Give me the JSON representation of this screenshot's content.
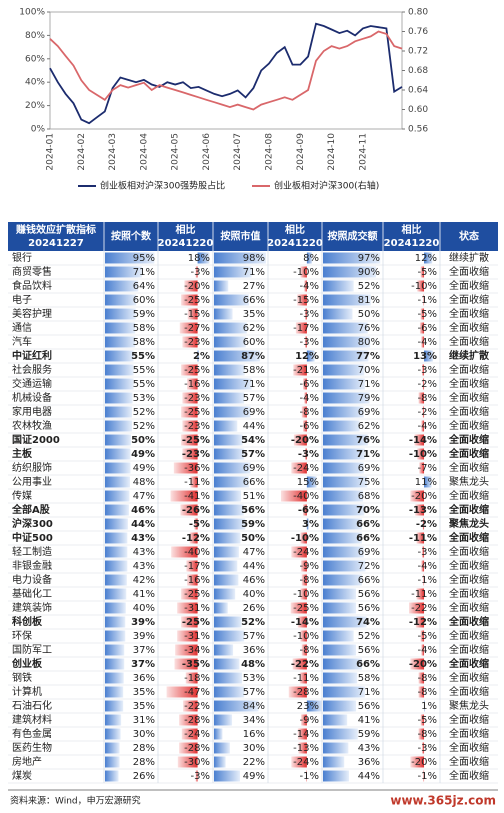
{
  "chart_data": {
    "type": "line",
    "x": [
      "2024-01",
      null,
      null,
      null,
      "2024-02",
      null,
      null,
      null,
      "2024-03",
      null,
      null,
      null,
      "2024-04",
      null,
      null,
      null,
      "2024-05",
      null,
      null,
      null,
      "2024-06",
      null,
      null,
      null,
      "2024-07",
      null,
      null,
      null,
      "2024-08",
      null,
      null,
      null,
      "2024-09",
      null,
      null,
      null,
      "2024-10",
      null,
      null,
      null,
      "2024-11",
      null,
      null,
      null,
      null,
      null
    ],
    "series": [
      {
        "name": "创业板相对沪深300强势股占比",
        "color": "#1c2c6e",
        "values": [
          52,
          40,
          30,
          22,
          8,
          5,
          10,
          15,
          35,
          44,
          42,
          40,
          42,
          38,
          36,
          40,
          38,
          40,
          35,
          36,
          33,
          30,
          28,
          30,
          33,
          27,
          35,
          50,
          56,
          65,
          70,
          55,
          55,
          62,
          90,
          88,
          85,
          82,
          84,
          80,
          86,
          88,
          87,
          86,
          32,
          36
        ]
      },
      {
        "name": "创业板相对沪深300(右轴)",
        "color": "#d9676a",
        "axis": "y2",
        "values": [
          0.745,
          0.73,
          0.71,
          0.69,
          0.66,
          0.64,
          0.63,
          0.62,
          0.64,
          0.65,
          0.645,
          0.65,
          0.655,
          0.64,
          0.65,
          0.645,
          0.64,
          0.635,
          0.63,
          0.625,
          0.62,
          0.615,
          0.61,
          0.605,
          0.61,
          0.605,
          0.6,
          0.61,
          0.615,
          0.62,
          0.625,
          0.62,
          0.63,
          0.64,
          0.7,
          0.72,
          0.73,
          0.725,
          0.73,
          0.74,
          0.745,
          0.75,
          0.76,
          0.755,
          0.73,
          0.725
        ]
      }
    ],
    "ylim": [
      0,
      100
    ],
    "yticks": [
      {
        "value": 0,
        "label": "0%"
      },
      {
        "value": 20,
        "label": "20%"
      },
      {
        "value": 40,
        "label": "40%"
      },
      {
        "value": 60,
        "label": "60%"
      },
      {
        "value": 80,
        "label": "80%"
      },
      {
        "value": 100,
        "label": "100%"
      }
    ],
    "y2lim": [
      0.56,
      0.8
    ],
    "y2ticks": [
      0.56,
      {
        "value": 0.6,
        "label": "0.60"
      },
      0.64,
      0.68,
      0.72,
      0.76,
      {
        "value": 0.8,
        "label": "0.80"
      }
    ]
  },
  "table": {
    "headers": [
      [
        "赚钱效应扩散指标",
        "20241227"
      ],
      [
        "按照个数"
      ],
      [
        "相比",
        "20241220"
      ],
      [
        "按照市值"
      ],
      [
        "相比",
        "20241220"
      ],
      [
        "按照成交额"
      ],
      [
        "相比",
        "20241220"
      ],
      [
        "状态"
      ]
    ],
    "rows": [
      {
        "cells": [
          "银行",
          "95%",
          "18%",
          "98%",
          "8%",
          "97%",
          "12%",
          "继续扩散"
        ]
      },
      {
        "cells": [
          "商贸零售",
          "71%",
          "-3%",
          "71%",
          "-10%",
          "90%",
          "-5%",
          "全面收缩"
        ]
      },
      {
        "cells": [
          "食品饮料",
          "64%",
          "-20%",
          "27%",
          "-4%",
          "52%",
          "-10%",
          "全面收缩"
        ]
      },
      {
        "cells": [
          "电子",
          "60%",
          "-25%",
          "66%",
          "-15%",
          "81%",
          "-1%",
          "全面收缩"
        ]
      },
      {
        "cells": [
          "美容护理",
          "59%",
          "-15%",
          "35%",
          "-3%",
          "50%",
          "-5%",
          "全面收缩"
        ]
      },
      {
        "cells": [
          "通信",
          "58%",
          "-27%",
          "62%",
          "-17%",
          "76%",
          "-6%",
          "全面收缩"
        ]
      },
      {
        "cells": [
          "汽车",
          "58%",
          "-23%",
          "60%",
          "-3%",
          "80%",
          "-4%",
          "全面收缩"
        ]
      },
      {
        "cells": [
          "中证红利",
          "55%",
          "2%",
          "87%",
          "12%",
          "77%",
          "13%",
          "继续扩散"
        ],
        "bold": true
      },
      {
        "cells": [
          "社会服务",
          "55%",
          "-25%",
          "58%",
          "-21%",
          "70%",
          "-3%",
          "全面收缩"
        ]
      },
      {
        "cells": [
          "交通运输",
          "55%",
          "-16%",
          "71%",
          "-6%",
          "71%",
          "-2%",
          "全面收缩"
        ]
      },
      {
        "cells": [
          "机械设备",
          "53%",
          "-23%",
          "57%",
          "-4%",
          "79%",
          "-8%",
          "全面收缩"
        ]
      },
      {
        "cells": [
          "家用电器",
          "52%",
          "-25%",
          "69%",
          "-8%",
          "69%",
          "-2%",
          "全面收缩"
        ]
      },
      {
        "cells": [
          "农林牧渔",
          "52%",
          "-23%",
          "44%",
          "-6%",
          "62%",
          "-4%",
          "全面收缩"
        ]
      },
      {
        "cells": [
          "国证2000",
          "50%",
          "-25%",
          "54%",
          "-20%",
          "76%",
          "-14%",
          "全面收缩"
        ],
        "bold": true
      },
      {
        "cells": [
          "主板",
          "49%",
          "-23%",
          "57%",
          "-3%",
          "71%",
          "-10%",
          "全面收缩"
        ],
        "bold": true
      },
      {
        "cells": [
          "纺织服饰",
          "49%",
          "-36%",
          "69%",
          "-24%",
          "69%",
          "-7%",
          "全面收缩"
        ]
      },
      {
        "cells": [
          "公用事业",
          "48%",
          "-11%",
          "66%",
          "15%",
          "75%",
          "11%",
          "聚焦龙头"
        ]
      },
      {
        "cells": [
          "传媒",
          "47%",
          "-41%",
          "51%",
          "-40%",
          "68%",
          "-20%",
          "全面收缩"
        ]
      },
      {
        "cells": [
          "全部A股",
          "46%",
          "-26%",
          "56%",
          "-6%",
          "70%",
          "-13%",
          "全面收缩"
        ],
        "bold": true
      },
      {
        "cells": [
          "沪深300",
          "44%",
          "-5%",
          "59%",
          "3%",
          "66%",
          "-2%",
          "聚焦龙头"
        ],
        "bold": true
      },
      {
        "cells": [
          "中证500",
          "43%",
          "-12%",
          "50%",
          "-10%",
          "66%",
          "-11%",
          "全面收缩"
        ],
        "bold": true
      },
      {
        "cells": [
          "轻工制造",
          "43%",
          "-40%",
          "47%",
          "-24%",
          "69%",
          "-3%",
          "全面收缩"
        ]
      },
      {
        "cells": [
          "非银金融",
          "43%",
          "-17%",
          "44%",
          "-9%",
          "72%",
          "-4%",
          "全面收缩"
        ]
      },
      {
        "cells": [
          "电力设备",
          "42%",
          "-16%",
          "46%",
          "-8%",
          "66%",
          "-1%",
          "全面收缩"
        ]
      },
      {
        "cells": [
          "基础化工",
          "41%",
          "-25%",
          "40%",
          "-10%",
          "56%",
          "-11%",
          "全面收缩"
        ]
      },
      {
        "cells": [
          "建筑装饰",
          "40%",
          "-31%",
          "26%",
          "-25%",
          "56%",
          "-22%",
          "全面收缩"
        ]
      },
      {
        "cells": [
          "科创板",
          "39%",
          "-25%",
          "52%",
          "-14%",
          "74%",
          "-12%",
          "全面收缩"
        ],
        "bold": true
      },
      {
        "cells": [
          "环保",
          "39%",
          "-31%",
          "57%",
          "-10%",
          "52%",
          "-5%",
          "全面收缩"
        ]
      },
      {
        "cells": [
          "国防军工",
          "37%",
          "-34%",
          "36%",
          "-8%",
          "56%",
          "-4%",
          "全面收缩"
        ]
      },
      {
        "cells": [
          "创业板",
          "37%",
          "-35%",
          "48%",
          "-22%",
          "66%",
          "-20%",
          "全面收缩"
        ],
        "bold": true
      },
      {
        "cells": [
          "钢铁",
          "36%",
          "-18%",
          "53%",
          "-11%",
          "58%",
          "-8%",
          "全面收缩"
        ]
      },
      {
        "cells": [
          "计算机",
          "35%",
          "-47%",
          "57%",
          "-28%",
          "71%",
          "-8%",
          "全面收缩"
        ]
      },
      {
        "cells": [
          "石油石化",
          "35%",
          "-22%",
          "84%",
          "23%",
          "56%",
          "1%",
          "聚焦龙头"
        ]
      },
      {
        "cells": [
          "建筑材料",
          "31%",
          "-28%",
          "34%",
          "-9%",
          "41%",
          "-5%",
          "全面收缩"
        ]
      },
      {
        "cells": [
          "有色金属",
          "30%",
          "-24%",
          "16%",
          "-14%",
          "59%",
          "-8%",
          "全面收缩"
        ]
      },
      {
        "cells": [
          "医药生物",
          "28%",
          "-28%",
          "30%",
          "-13%",
          "43%",
          "-3%",
          "全面收缩"
        ]
      },
      {
        "cells": [
          "房地产",
          "28%",
          "-30%",
          "22%",
          "-24%",
          "36%",
          "-20%",
          "全面收缩"
        ]
      },
      {
        "cells": [
          "煤炭",
          "26%",
          "-3%",
          "49%",
          "-1%",
          "44%",
          "-1%",
          "全面收缩"
        ]
      }
    ]
  },
  "footer": {
    "source": "资料来源：Wind，申万宏源研究",
    "watermark": "www.365jz.com"
  }
}
